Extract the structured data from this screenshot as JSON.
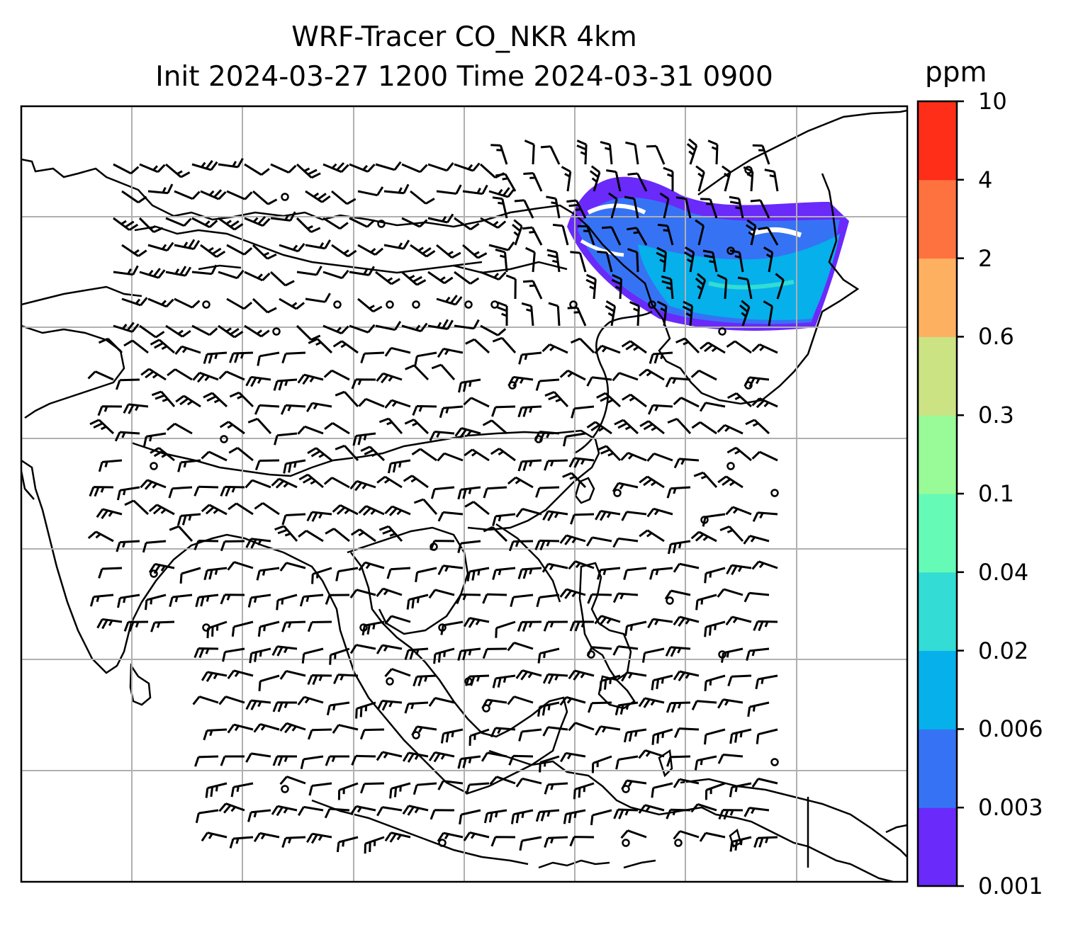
{
  "title_line1": "WRF-Tracer CO_NKR 4km",
  "title_line2": "Init 2024-03-27 1200 Time 2024-03-31 0900",
  "colorbar": {
    "units": "ppm",
    "levels": [
      "0.001",
      "0.003",
      "0.006",
      "0.02",
      "0.04",
      "0.1",
      "0.3",
      "0.6",
      "2",
      "4",
      "10"
    ],
    "colors": [
      "#6a2afa",
      "#3673f4",
      "#06b0ea",
      "#33dcd4",
      "#66fab7",
      "#99fa98",
      "#cce384",
      "#feb061",
      "#fe723f",
      "#fe2e18"
    ]
  },
  "map": {
    "background": "#ffffff",
    "gridlines": true,
    "gridline_color": "#b0b0b0",
    "coastline_color": "#000000",
    "wind_barb_color": "#000000"
  }
}
